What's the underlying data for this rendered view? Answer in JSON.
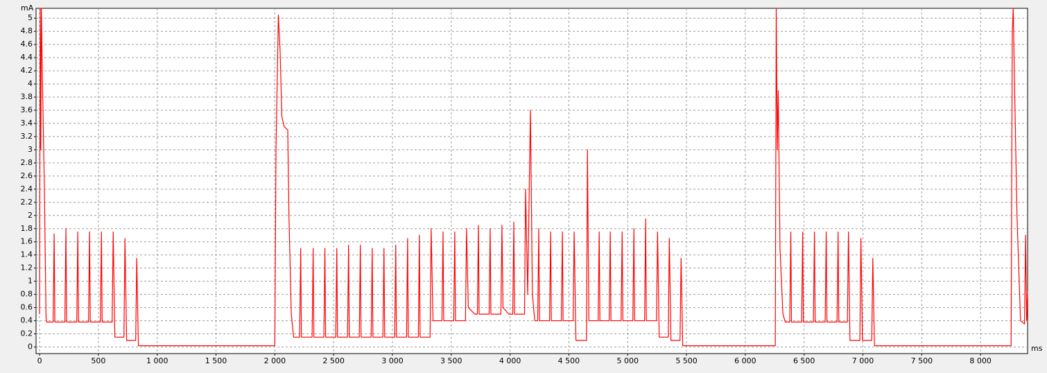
{
  "chart_data": {
    "type": "line",
    "y_label": "mA",
    "x_label": "ms",
    "xlim": [
      -30,
      8400
    ],
    "ylim": [
      -0.1,
      5.15
    ],
    "xticks": [
      0,
      500,
      {
        "value": 1000,
        "label": "1 000"
      },
      {
        "value": 1500,
        "label": "1 500"
      },
      {
        "value": 2000,
        "label": "2 000"
      },
      {
        "value": 2500,
        "label": "2 500"
      },
      {
        "value": 3000,
        "label": "3 000"
      },
      {
        "value": 3500,
        "label": "3 500"
      },
      {
        "value": 4000,
        "label": "4 000"
      },
      {
        "value": 4500,
        "label": "4 500"
      },
      {
        "value": 5000,
        "label": "5 000"
      },
      {
        "value": 5500,
        "label": "5 500"
      },
      {
        "value": 6000,
        "label": "6 000"
      },
      {
        "value": 6500,
        "label": "6 500"
      },
      {
        "value": 7000,
        "label": "7 000"
      },
      {
        "value": 7500,
        "label": "7 500"
      },
      {
        "value": 8000,
        "label": "8 000"
      }
    ],
    "yticks": [
      0,
      0.2,
      0.4,
      0.6,
      0.8,
      1,
      1.2,
      1.4,
      1.6,
      1.8,
      2,
      2.2,
      2.4,
      2.6,
      2.8,
      3,
      3.2,
      3.4,
      3.6,
      3.8,
      4,
      4.2,
      4.4,
      4.6,
      4.8,
      5
    ],
    "grid": true,
    "series": [
      {
        "color": "#ff0000",
        "x": [
          0,
          5,
          10,
          15,
          25,
          40,
          55,
          60,
          115,
          124,
          130,
          215,
          224,
          230,
          316,
          325,
          331,
          416,
          425,
          431,
          517,
          526,
          532,
          617,
          626,
          640,
          717,
          726,
          740,
          817,
          826,
          840,
          2000,
          2010,
          2030,
          2045,
          2060,
          2080,
          2110,
          2120,
          2140,
          2160,
          2211,
          2220,
          2226,
          2317,
          2326,
          2332,
          2417,
          2426,
          2432,
          2518,
          2527,
          2533,
          2618,
          2627,
          2633,
          2718,
          2727,
          2733,
          2819,
          2828,
          2834,
          2919,
          2928,
          2934,
          3019,
          3028,
          3034,
          3120,
          3129,
          3135,
          3220,
          3229,
          3235,
          3320,
          3329,
          3345,
          3421,
          3430,
          3436,
          3521,
          3530,
          3536,
          3621,
          3630,
          3645,
          3700,
          3722,
          3731,
          3737,
          3822,
          3831,
          3837,
          3922,
          3931,
          3940,
          3990,
          4023,
          4032,
          4038,
          4123,
          4132,
          4150,
          4173,
          4190,
          4210,
          4235,
          4244,
          4250,
          4336,
          4345,
          4351,
          4436,
          4445,
          4451,
          4536,
          4545,
          4560,
          4650,
          4658,
          4670,
          4749,
          4758,
          4764,
          4843,
          4852,
          4858,
          4944,
          4953,
          4959,
          5044,
          5053,
          5059,
          5144,
          5153,
          5159,
          5245,
          5254,
          5268,
          5345,
          5354,
          5368,
          5445,
          5454,
          5468,
          6255,
          6263,
          6272,
          6280,
          6295,
          6320,
          6340,
          6378,
          6387,
          6393,
          6479,
          6488,
          6494,
          6579,
          6588,
          6594,
          6679,
          6688,
          6694,
          6780,
          6789,
          6795,
          6868,
          6877,
          6890,
          6974,
          6983,
          6996,
          7075,
          7084,
          7098,
          8260,
          8270,
          8278,
          8290,
          8310,
          8340,
          8374,
          8383,
          8392,
          8400
        ],
        "values": [
          0.5,
          5.15,
          3.0,
          5.15,
          4.0,
          2.5,
          0.45,
          0.38,
          0.38,
          1.72,
          0.38,
          0.38,
          1.8,
          0.38,
          0.38,
          1.75,
          0.38,
          0.38,
          1.75,
          0.38,
          0.38,
          1.75,
          0.38,
          0.38,
          1.75,
          0.15,
          0.15,
          1.65,
          0.1,
          0.1,
          1.35,
          0.02,
          0.02,
          3.0,
          5.05,
          4.5,
          3.5,
          3.35,
          3.3,
          2.0,
          0.5,
          0.15,
          0.15,
          1.5,
          0.15,
          0.15,
          1.5,
          0.15,
          0.15,
          1.5,
          0.15,
          0.15,
          1.5,
          0.15,
          0.15,
          1.55,
          0.15,
          0.15,
          1.55,
          0.15,
          0.15,
          1.5,
          0.15,
          0.15,
          1.5,
          0.15,
          0.15,
          1.55,
          0.15,
          0.15,
          1.65,
          0.15,
          0.15,
          1.7,
          0.15,
          0.15,
          1.8,
          0.4,
          0.4,
          1.75,
          0.4,
          0.4,
          1.75,
          0.4,
          0.4,
          1.8,
          0.6,
          0.5,
          0.5,
          1.85,
          0.5,
          0.5,
          1.8,
          0.5,
          0.5,
          1.85,
          0.6,
          0.5,
          0.5,
          1.9,
          0.5,
          0.5,
          2.4,
          0.8,
          3.6,
          0.8,
          0.4,
          0.4,
          1.8,
          0.4,
          0.4,
          1.75,
          0.4,
          0.4,
          1.75,
          0.4,
          0.4,
          1.75,
          0.1,
          0.1,
          3.0,
          0.4,
          0.4,
          1.75,
          0.4,
          0.4,
          1.75,
          0.4,
          0.4,
          1.75,
          0.4,
          0.4,
          1.8,
          0.4,
          0.4,
          1.95,
          0.4,
          0.4,
          1.75,
          0.15,
          0.15,
          1.65,
          0.1,
          0.1,
          1.35,
          0.02,
          0.02,
          5.15,
          3.0,
          3.9,
          1.5,
          0.5,
          0.38,
          0.38,
          1.75,
          0.38,
          0.38,
          1.75,
          0.38,
          0.38,
          1.75,
          0.38,
          0.38,
          1.75,
          0.38,
          0.38,
          1.75,
          0.38,
          0.38,
          1.75,
          0.1,
          0.1,
          1.65,
          0.1,
          0.1,
          1.35,
          0.02,
          0.02,
          4.8,
          5.15,
          3.9,
          2.0,
          0.4,
          0.35,
          1.7,
          0.4,
          0.85
        ]
      }
    ]
  }
}
